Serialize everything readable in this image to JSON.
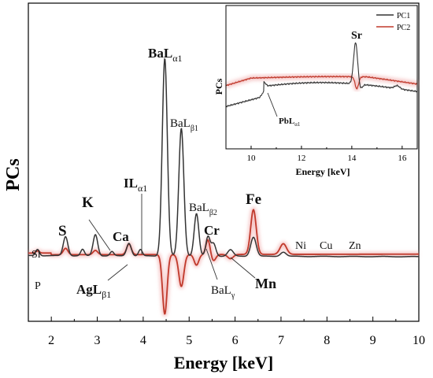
{
  "chart_data": [
    {
      "type": "line",
      "xlabel": "Energy [keV]",
      "ylabel": "PCs",
      "xlim": [
        1.5,
        10
      ],
      "xticks": [
        2,
        3,
        4,
        5,
        6,
        7,
        8,
        9,
        10
      ],
      "grid": false,
      "series": [
        {
          "name": "PC1",
          "color": "#333333"
        },
        {
          "name": "PC2",
          "color": "#c0392b"
        }
      ],
      "annotations": [
        {
          "id": "si",
          "lead": "Si",
          "sub": "",
          "x": 1.62,
          "bold": false
        },
        {
          "id": "p",
          "lead": "P",
          "sub": "",
          "x": 1.75,
          "bold": false
        },
        {
          "id": "s",
          "lead": "S",
          "sub": "",
          "x": 2.3,
          "bold": true
        },
        {
          "id": "k",
          "lead": "K",
          "sub": "",
          "x": 3.3,
          "bold": true
        },
        {
          "id": "ag",
          "lead": "AgL",
          "sub": "β1",
          "x": 2.98,
          "bold": true
        },
        {
          "id": "ca",
          "lead": "Ca",
          "sub": "",
          "x": 3.7,
          "bold": true
        },
        {
          "id": "i",
          "lead": "IL",
          "sub": "α1",
          "x": 3.94,
          "bold": true
        },
        {
          "id": "bala1",
          "lead": "BaL",
          "sub": "α1",
          "x": 4.47,
          "bold": true
        },
        {
          "id": "balb1",
          "lead": "BaL",
          "sub": "β1",
          "x": 4.83,
          "bold": false
        },
        {
          "id": "balb2",
          "lead": "BaL",
          "sub": "β2",
          "x": 5.16,
          "bold": false
        },
        {
          "id": "cr",
          "lead": "Cr",
          "sub": "",
          "x": 5.41,
          "bold": true
        },
        {
          "id": "fe",
          "lead": "Fe",
          "sub": "",
          "x": 6.4,
          "bold": true
        },
        {
          "id": "balg",
          "lead": "BaL",
          "sub": "γ",
          "x": 5.53,
          "bold": false
        },
        {
          "id": "mn",
          "lead": "Mn",
          "sub": "",
          "x": 5.9,
          "bold": true
        },
        {
          "id": "ni",
          "lead": "Ni",
          "sub": "",
          "x": 7.47,
          "bold": false
        },
        {
          "id": "cu",
          "lead": "Cu",
          "sub": "",
          "x": 8.04,
          "bold": false
        },
        {
          "id": "zn",
          "lead": "Zn",
          "sub": "",
          "x": 8.63,
          "bold": false
        }
      ]
    },
    {
      "type": "line",
      "xlabel": "Energy [keV]",
      "ylabel": "PCs",
      "xlim": [
        9,
        16.6
      ],
      "xticks": [
        10,
        12,
        14,
        16
      ],
      "legend": "top-right",
      "grid": false,
      "series": [
        {
          "name": "PC1",
          "color": "#333333"
        },
        {
          "name": "PC2",
          "color": "#c0392b"
        }
      ],
      "annotations": [
        {
          "id": "sr",
          "lead": "Sr",
          "sub": "",
          "x": 14.15,
          "bold": true
        },
        {
          "id": "pb",
          "lead": "PbL",
          "sub": "α1",
          "x": 10.55,
          "bold": true
        }
      ]
    }
  ]
}
